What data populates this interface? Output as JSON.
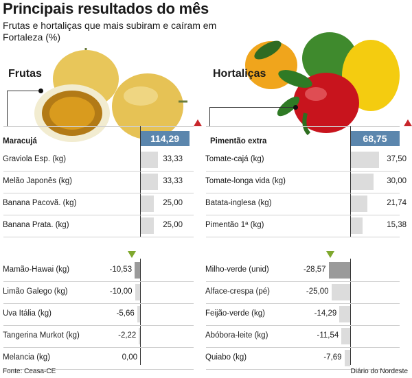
{
  "header": {
    "title": "Principais resultados do mês",
    "subtitle": "Frutas e hortaliças que mais subiram  e caíram em Fortaleza (%)"
  },
  "colors": {
    "accent_box": "#5b86ad",
    "up_triangle": "#c8262b",
    "down_triangle": "#7fa82e",
    "bar_light": "#dcdcdc",
    "bar_dark": "#9a9a9a"
  },
  "chart_data": [
    {
      "type": "bar",
      "title": "Frutas",
      "top_item": {
        "label": "Maracujá",
        "value": 114.29,
        "display": "114,29"
      },
      "rises": [
        {
          "label": "Graviola Esp. (kg)",
          "value": 33.33,
          "display": "33,33"
        },
        {
          "label": "Melão Japonês (kg)",
          "value": 33.33,
          "display": "33,33"
        },
        {
          "label": "Banana Pacovã. (kg)",
          "value": 25.0,
          "display": "25,00"
        },
        {
          "label": "Banana Prata. (kg)",
          "value": 25.0,
          "display": "25,00"
        }
      ],
      "falls": [
        {
          "label": "Mamão-Hawai (kg)",
          "value": -10.53,
          "display": "-10,53"
        },
        {
          "label": "Limão Galego (kg)",
          "value": -10.0,
          "display": "-10,00"
        },
        {
          "label": "Uva Itália (kg)",
          "value": -5.66,
          "display": "-5,66"
        },
        {
          "label": "Tangerina Murkot (kg)",
          "value": -2.22,
          "display": "-2,22"
        },
        {
          "label": "Melancia (kg)",
          "value": 0.0,
          "display": "0,00"
        }
      ]
    },
    {
      "type": "bar",
      "title": "Hortaliças",
      "top_item": {
        "label": "Pimentão extra",
        "value": 68.75,
        "display": "68,75"
      },
      "rises": [
        {
          "label": "Tomate-cajá (kg)",
          "value": 37.5,
          "display": "37,50"
        },
        {
          "label": "Tomate-longa vida (kg)",
          "value": 30.0,
          "display": "30,00"
        },
        {
          "label": "Batata-inglesa (kg)",
          "value": 21.74,
          "display": "21,74"
        },
        {
          "label": "Pimentão 1ª (kg)",
          "value": 15.38,
          "display": "15,38"
        }
      ],
      "falls": [
        {
          "label": "Milho-verde (unid)",
          "value": -28.57,
          "display": "-28,57"
        },
        {
          "label": "Alface-crespa (pé)",
          "value": -25.0,
          "display": "-25,00"
        },
        {
          "label": "Feijão-verde (kg)",
          "value": -14.29,
          "display": "-14,29"
        },
        {
          "label": "Abóbora-leite (kg)",
          "value": -11.54,
          "display": "-11,54"
        },
        {
          "label": "Quiabo (kg)",
          "value": -7.69,
          "display": "-7,69"
        }
      ]
    }
  ],
  "footer": {
    "source": "Fonte: Ceasa-CE",
    "credit": "Diário do Nordeste"
  }
}
